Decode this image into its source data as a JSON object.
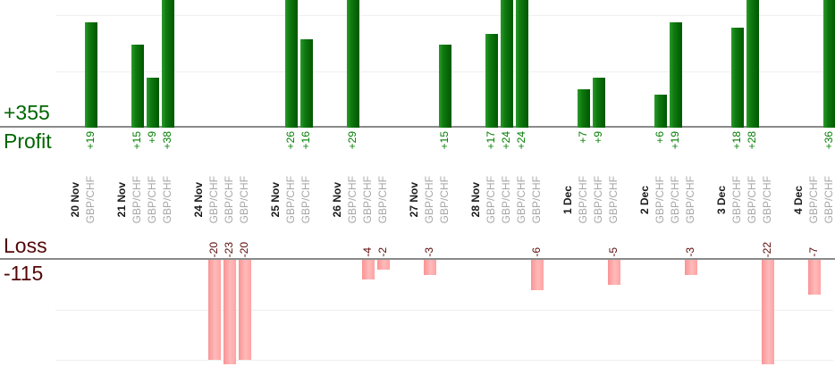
{
  "left_labels": {
    "profit_total": "+355",
    "profit": "Profit",
    "loss": "Loss",
    "loss_total": "-115"
  },
  "colors": {
    "profit_bar_light": "#2b9a2b",
    "profit_bar_dark": "#005700",
    "loss_bar_light": "#ffbaba",
    "loss_bar_dark": "#f99494",
    "profit_text": "#006600",
    "profit_value_text": "#007d00",
    "loss_text": "#520707",
    "loss_value_text": "#5a0a0a",
    "date_text": "#1b1b1b",
    "instrument_text": "#a7a7a7",
    "axis_line": "#8a8a8a",
    "gridline": "#efefef"
  },
  "chart_data": {
    "type": "bar",
    "title": "",
    "grid": true,
    "gridline_interval": 10,
    "profit_axis_visible_max": 23,
    "loss_axis_visible_max": -23,
    "totals": {
      "profit": 355,
      "loss": -115
    },
    "groups": [
      {
        "date": "20 Nov",
        "trades": [
          {
            "instrument": "GBP/CHF",
            "value": 19,
            "label": "+19"
          }
        ]
      },
      {
        "date": "21 Nov",
        "trades": [
          {
            "instrument": "GBP/CHF",
            "value": 15,
            "label": "+15"
          },
          {
            "instrument": "GBP/CHF",
            "value": 9,
            "label": "+9"
          },
          {
            "instrument": "GBP/CHF",
            "value": 38,
            "label": "+38"
          }
        ]
      },
      {
        "date": "24 Nov",
        "trades": [
          {
            "instrument": "GBP/CHF",
            "value": -20,
            "label": "-20"
          },
          {
            "instrument": "GBP/CHF",
            "value": -23,
            "label": "-23"
          },
          {
            "instrument": "GBP/CHF",
            "value": -20,
            "label": "-20"
          }
        ]
      },
      {
        "date": "25 Nov",
        "trades": [
          {
            "instrument": "GBP/CHF",
            "value": 26,
            "label": "+26"
          },
          {
            "instrument": "GBP/CHF",
            "value": 16,
            "label": "+16"
          }
        ]
      },
      {
        "date": "26 Nov",
        "trades": [
          {
            "instrument": "GBP/CHF",
            "value": 29,
            "label": "+29"
          },
          {
            "instrument": "GBP/CHF",
            "value": -4,
            "label": "-4"
          },
          {
            "instrument": "GBP/CHF",
            "value": -2,
            "label": "-2"
          }
        ]
      },
      {
        "date": "27 Nov",
        "trades": [
          {
            "instrument": "GBP/CHF",
            "value": -3,
            "label": "-3"
          },
          {
            "instrument": "GBP/CHF",
            "value": 15,
            "label": "+15"
          }
        ]
      },
      {
        "date": "28 Nov",
        "trades": [
          {
            "instrument": "GBP/CHF",
            "value": 17,
            "label": "+17"
          },
          {
            "instrument": "GBP/CHF",
            "value": 24,
            "label": "+24"
          },
          {
            "instrument": "GBP/CHF",
            "value": 24,
            "label": "+24"
          },
          {
            "instrument": "GBP/CHF",
            "value": -6,
            "label": "-6"
          }
        ]
      },
      {
        "date": "1 Dec",
        "trades": [
          {
            "instrument": "GBP/CHF",
            "value": 7,
            "label": "+7"
          },
          {
            "instrument": "GBP/CHF",
            "value": 9,
            "label": "+9"
          },
          {
            "instrument": "GBP/CHF",
            "value": -5,
            "label": "-5"
          }
        ]
      },
      {
        "date": "2 Dec",
        "trades": [
          {
            "instrument": "GBP/CHF",
            "value": 6,
            "label": "+6"
          },
          {
            "instrument": "GBP/CHF",
            "value": 19,
            "label": "+19"
          },
          {
            "instrument": "GBP/CHF",
            "value": -3,
            "label": "-3"
          }
        ]
      },
      {
        "date": "3 Dec",
        "trades": [
          {
            "instrument": "GBP/CHF",
            "value": 18,
            "label": "+18"
          },
          {
            "instrument": "GBP/CHF",
            "value": 28,
            "label": "+28"
          },
          {
            "instrument": "GBP/CHF",
            "value": -22,
            "label": "-22"
          }
        ]
      },
      {
        "date": "4 Dec",
        "trades": [
          {
            "instrument": "GBP/CHF",
            "value": -7,
            "label": "-7"
          },
          {
            "instrument": "GBP/CHF",
            "value": 36,
            "label": "+36"
          }
        ]
      }
    ]
  }
}
